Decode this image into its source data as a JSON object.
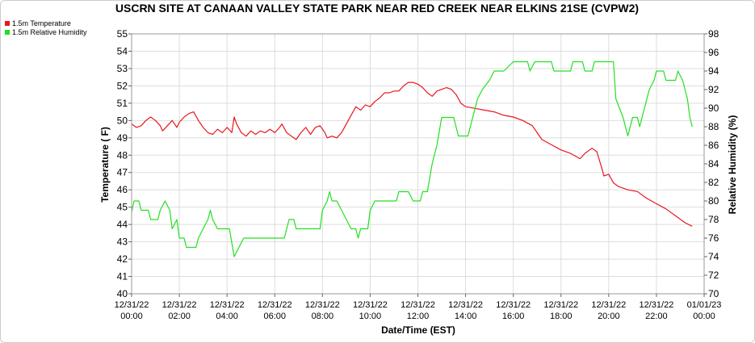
{
  "chart_data": {
    "type": "line",
    "title": "USCRN SITE AT CANAAN VALLEY STATE PARK NEAR RED CREEK NEAR ELKINS 21SE (CVPW2)",
    "xlabel": "Date/Time (EST)",
    "ylabel_left": "Temperature ( F)",
    "ylabel_right": "Relative Humidity (%)",
    "xlim": [
      0,
      24
    ],
    "ylim_left": [
      40,
      55
    ],
    "ylim_right": [
      70,
      98
    ],
    "yticks_left": [
      "40",
      "41",
      "42",
      "43",
      "44",
      "45",
      "46",
      "47",
      "48",
      "49",
      "50",
      "51",
      "52",
      "53",
      "54",
      "55"
    ],
    "yticks_right": [
      "70",
      "72",
      "74",
      "76",
      "78",
      "80",
      "82",
      "84",
      "86",
      "88",
      "90",
      "92",
      "94",
      "96",
      "98"
    ],
    "xticks": [
      {
        "date": "12/31/22",
        "time": "00:00"
      },
      {
        "date": "12/31/22",
        "time": "02:00"
      },
      {
        "date": "12/31/22",
        "time": "04:00"
      },
      {
        "date": "12/31/22",
        "time": "06:00"
      },
      {
        "date": "12/31/22",
        "time": "08:00"
      },
      {
        "date": "12/31/22",
        "time": "10:00"
      },
      {
        "date": "12/31/22",
        "time": "12:00"
      },
      {
        "date": "12/31/22",
        "time": "14:00"
      },
      {
        "date": "12/31/22",
        "time": "16:00"
      },
      {
        "date": "12/31/22",
        "time": "18:00"
      },
      {
        "date": "12/31/22",
        "time": "20:00"
      },
      {
        "date": "12/31/22",
        "time": "22:00"
      },
      {
        "date": "01/01/23",
        "time": "00:00"
      }
    ],
    "grid": true,
    "legend_position": "top-left",
    "series": [
      {
        "name": "1.5m Temperature",
        "axis": "left",
        "color": "#e8171c",
        "points": [
          [
            0.0,
            49.8
          ],
          [
            0.2,
            49.6
          ],
          [
            0.4,
            49.7
          ],
          [
            0.6,
            50.0
          ],
          [
            0.8,
            50.2
          ],
          [
            1.0,
            50.0
          ],
          [
            1.2,
            49.7
          ],
          [
            1.3,
            49.4
          ],
          [
            1.5,
            49.7
          ],
          [
            1.7,
            50.0
          ],
          [
            1.9,
            49.6
          ],
          [
            2.0,
            49.9
          ],
          [
            2.2,
            50.2
          ],
          [
            2.4,
            50.4
          ],
          [
            2.6,
            50.5
          ],
          [
            2.8,
            50.0
          ],
          [
            3.0,
            49.6
          ],
          [
            3.2,
            49.3
          ],
          [
            3.4,
            49.2
          ],
          [
            3.6,
            49.5
          ],
          [
            3.8,
            49.3
          ],
          [
            4.0,
            49.6
          ],
          [
            4.2,
            49.3
          ],
          [
            4.3,
            50.2
          ],
          [
            4.4,
            49.8
          ],
          [
            4.6,
            49.3
          ],
          [
            4.8,
            49.1
          ],
          [
            5.0,
            49.4
          ],
          [
            5.2,
            49.2
          ],
          [
            5.4,
            49.4
          ],
          [
            5.6,
            49.3
          ],
          [
            5.8,
            49.5
          ],
          [
            6.0,
            49.3
          ],
          [
            6.2,
            49.6
          ],
          [
            6.3,
            49.8
          ],
          [
            6.5,
            49.3
          ],
          [
            6.7,
            49.1
          ],
          [
            6.9,
            48.9
          ],
          [
            7.1,
            49.3
          ],
          [
            7.3,
            49.6
          ],
          [
            7.5,
            49.2
          ],
          [
            7.7,
            49.6
          ],
          [
            7.9,
            49.7
          ],
          [
            8.1,
            49.3
          ],
          [
            8.2,
            49.0
          ],
          [
            8.4,
            49.1
          ],
          [
            8.6,
            49.0
          ],
          [
            8.8,
            49.3
          ],
          [
            9.0,
            49.8
          ],
          [
            9.2,
            50.3
          ],
          [
            9.4,
            50.8
          ],
          [
            9.6,
            50.6
          ],
          [
            9.8,
            50.9
          ],
          [
            10.0,
            50.8
          ],
          [
            10.2,
            51.1
          ],
          [
            10.4,
            51.3
          ],
          [
            10.6,
            51.6
          ],
          [
            10.8,
            51.6
          ],
          [
            11.0,
            51.7
          ],
          [
            11.2,
            51.7
          ],
          [
            11.4,
            52.0
          ],
          [
            11.6,
            52.2
          ],
          [
            11.8,
            52.2
          ],
          [
            12.0,
            52.1
          ],
          [
            12.2,
            51.9
          ],
          [
            12.4,
            51.6
          ],
          [
            12.6,
            51.4
          ],
          [
            12.8,
            51.7
          ],
          [
            13.0,
            51.8
          ],
          [
            13.2,
            51.9
          ],
          [
            13.4,
            51.8
          ],
          [
            13.6,
            51.5
          ],
          [
            13.8,
            51.0
          ],
          [
            14.0,
            50.8
          ],
          [
            14.4,
            50.7
          ],
          [
            14.8,
            50.6
          ],
          [
            15.2,
            50.5
          ],
          [
            15.6,
            50.3
          ],
          [
            16.0,
            50.2
          ],
          [
            16.4,
            50.0
          ],
          [
            16.8,
            49.7
          ],
          [
            17.0,
            49.3
          ],
          [
            17.2,
            48.9
          ],
          [
            17.6,
            48.6
          ],
          [
            18.0,
            48.3
          ],
          [
            18.4,
            48.1
          ],
          [
            18.8,
            47.8
          ],
          [
            19.0,
            48.1
          ],
          [
            19.2,
            48.3
          ],
          [
            19.3,
            48.4
          ],
          [
            19.5,
            48.2
          ],
          [
            19.7,
            47.3
          ],
          [
            19.8,
            46.8
          ],
          [
            20.0,
            46.9
          ],
          [
            20.2,
            46.4
          ],
          [
            20.4,
            46.2
          ],
          [
            20.8,
            46.0
          ],
          [
            21.2,
            45.9
          ],
          [
            21.6,
            45.5
          ],
          [
            22.0,
            45.2
          ],
          [
            22.4,
            44.9
          ],
          [
            22.8,
            44.5
          ],
          [
            23.2,
            44.1
          ],
          [
            23.5,
            43.9
          ]
        ]
      },
      {
        "name": "1.5m Relative Humidity",
        "axis": "right",
        "color": "#21e021",
        "points": [
          [
            0.0,
            78.8
          ],
          [
            0.1,
            80.0
          ],
          [
            0.3,
            80.0
          ],
          [
            0.4,
            79.0
          ],
          [
            0.7,
            79.0
          ],
          [
            0.8,
            78.0
          ],
          [
            1.1,
            78.0
          ],
          [
            1.2,
            79.0
          ],
          [
            1.4,
            80.0
          ],
          [
            1.6,
            79.0
          ],
          [
            1.7,
            77.0
          ],
          [
            1.9,
            78.0
          ],
          [
            2.0,
            76.0
          ],
          [
            2.2,
            76.0
          ],
          [
            2.3,
            75.0
          ],
          [
            2.7,
            75.0
          ],
          [
            2.8,
            76.0
          ],
          [
            3.0,
            77.0
          ],
          [
            3.2,
            78.0
          ],
          [
            3.3,
            79.0
          ],
          [
            3.4,
            78.0
          ],
          [
            3.6,
            77.0
          ],
          [
            4.1,
            77.0
          ],
          [
            4.3,
            74.0
          ],
          [
            4.5,
            75.0
          ],
          [
            4.7,
            76.0
          ],
          [
            5.5,
            76.0
          ],
          [
            6.4,
            76.0
          ],
          [
            6.6,
            78.0
          ],
          [
            6.8,
            78.0
          ],
          [
            6.9,
            77.0
          ],
          [
            7.9,
            77.0
          ],
          [
            8.0,
            79.0
          ],
          [
            8.2,
            80.0
          ],
          [
            8.3,
            81.0
          ],
          [
            8.4,
            80.0
          ],
          [
            8.6,
            80.0
          ],
          [
            8.8,
            79.0
          ],
          [
            9.0,
            78.0
          ],
          [
            9.2,
            77.0
          ],
          [
            9.4,
            77.0
          ],
          [
            9.5,
            76.0
          ],
          [
            9.6,
            77.0
          ],
          [
            9.9,
            77.0
          ],
          [
            10.0,
            79.0
          ],
          [
            10.2,
            80.0
          ],
          [
            10.6,
            80.0
          ],
          [
            11.1,
            80.0
          ],
          [
            11.2,
            81.0
          ],
          [
            11.6,
            81.0
          ],
          [
            11.8,
            80.0
          ],
          [
            12.1,
            80.0
          ],
          [
            12.2,
            81.0
          ],
          [
            12.4,
            81.0
          ],
          [
            12.6,
            84.0
          ],
          [
            12.8,
            86.0
          ],
          [
            13.0,
            89.0
          ],
          [
            13.5,
            89.0
          ],
          [
            13.7,
            87.0
          ],
          [
            14.1,
            87.0
          ],
          [
            14.3,
            89.0
          ],
          [
            14.5,
            91.0
          ],
          [
            14.7,
            92.0
          ],
          [
            15.0,
            93.0
          ],
          [
            15.2,
            94.0
          ],
          [
            15.6,
            94.0
          ],
          [
            16.0,
            95.0
          ],
          [
            16.6,
            95.0
          ],
          [
            16.7,
            94.0
          ],
          [
            16.9,
            95.0
          ],
          [
            17.6,
            95.0
          ],
          [
            17.7,
            94.0
          ],
          [
            18.4,
            94.0
          ],
          [
            18.5,
            95.0
          ],
          [
            18.9,
            95.0
          ],
          [
            19.0,
            94.0
          ],
          [
            19.3,
            94.0
          ],
          [
            19.4,
            95.0
          ],
          [
            20.2,
            95.0
          ],
          [
            20.3,
            91.0
          ],
          [
            20.6,
            89.0
          ],
          [
            20.8,
            87.0
          ],
          [
            21.0,
            89.0
          ],
          [
            21.2,
            89.0
          ],
          [
            21.3,
            88.0
          ],
          [
            21.5,
            90.0
          ],
          [
            21.7,
            92.0
          ],
          [
            21.9,
            93.0
          ],
          [
            22.0,
            94.0
          ],
          [
            22.3,
            94.0
          ],
          [
            22.4,
            93.0
          ],
          [
            22.8,
            93.0
          ],
          [
            22.9,
            94.0
          ],
          [
            23.1,
            93.0
          ],
          [
            23.3,
            91.0
          ],
          [
            23.4,
            89.0
          ],
          [
            23.5,
            88.0
          ]
        ]
      }
    ]
  }
}
